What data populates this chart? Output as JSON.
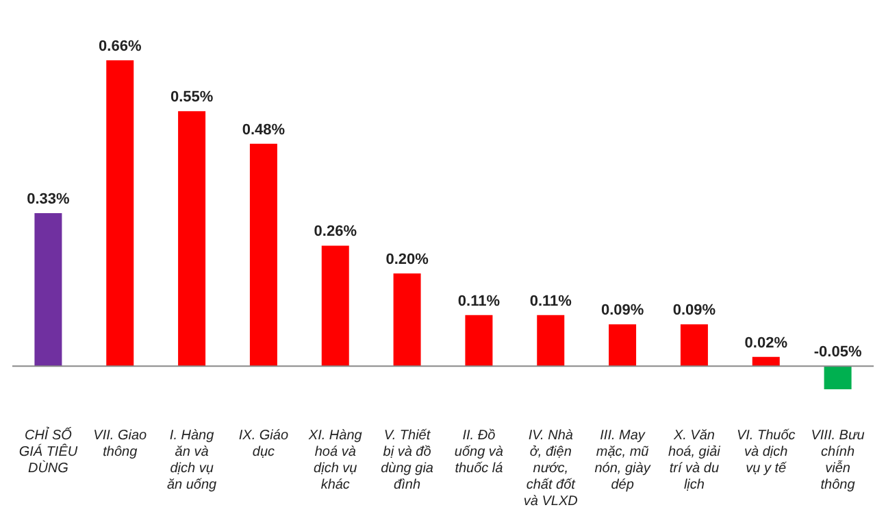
{
  "chart_data": {
    "type": "bar",
    "categories": [
      "CHỈ SỐ GIÁ TIÊU DÙNG",
      "VII. Giao thông",
      "I. Hàng ăn và dịch vụ ăn uống",
      "IX. Giáo dục",
      "XI. Hàng hoá và dịch vụ khác",
      "V. Thiết bị và đồ dùng gia đình",
      "II. Đồ uống và thuốc lá",
      "IV. Nhà ở, điện nước, chất đốt và VLXD",
      "III. May mặc, mũ nón, giày dép",
      "X. Văn hoá, giải trí và du lịch",
      "VI. Thuốc và dịch vụ y tế",
      "VIII. Bưu chính viễn thông"
    ],
    "values": [
      0.33,
      0.66,
      0.55,
      0.48,
      0.26,
      0.2,
      0.11,
      0.11,
      0.09,
      0.09,
      0.02,
      -0.05
    ],
    "value_labels": [
      "0.33%",
      "0.66%",
      "0.55%",
      "0.48%",
      "0.26%",
      "0.20%",
      "0.11%",
      "0.11%",
      "0.09%",
      "0.09%",
      "0.02%",
      "-0.05%"
    ],
    "colors": [
      "#7030a0",
      "#ff0000",
      "#ff0000",
      "#ff0000",
      "#ff0000",
      "#ff0000",
      "#ff0000",
      "#ff0000",
      "#ff0000",
      "#ff0000",
      "#ff0000",
      "#00b050"
    ],
    "tick_labels": "x",
    "grid": false
  }
}
